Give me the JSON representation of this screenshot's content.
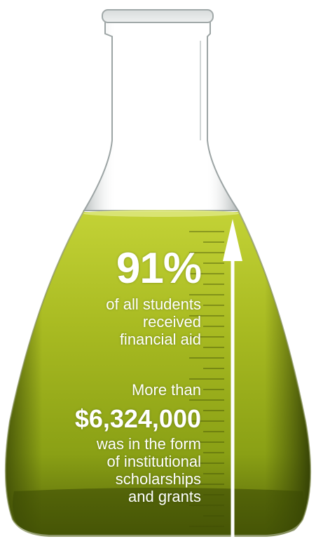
{
  "stat": {
    "percent": "91%",
    "percent_caption": [
      "of all students",
      "received",
      "financial aid"
    ]
  },
  "aid": {
    "lead": "More than",
    "amount": "$6,324,000",
    "caption": [
      "was in the form",
      "of institutional",
      "scholarships",
      "and grants"
    ]
  },
  "colors": {
    "liquid_top": "#c9d63a",
    "liquid_mid": "#9fb01e",
    "liquid_dark": "#4a5a08",
    "glass_edge": "#8a9090",
    "text": "#ffffff"
  }
}
